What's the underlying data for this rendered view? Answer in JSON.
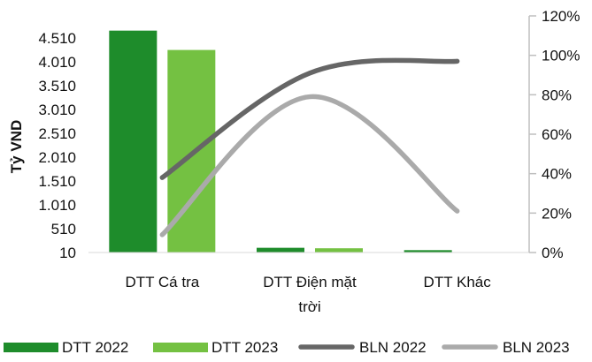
{
  "chart_data": {
    "type": "bar",
    "categories": [
      [
        "DTT Cá tra"
      ],
      [
        "DTT Điện mặt",
        "trời"
      ],
      [
        "DTT Khác"
      ]
    ],
    "ylabel": "Tỷ VND",
    "y_ticks": [
      "4.510",
      "4.010",
      "3.510",
      "3.010",
      "2.510",
      "2.010",
      "1.510",
      "1.010",
      "510",
      "10"
    ],
    "ylim": [
      10,
      4760
    ],
    "y2_ticks": [
      "120%",
      "100%",
      "80%",
      "60%",
      "40%",
      "20%",
      "0%"
    ],
    "y2lim": [
      0,
      120
    ],
    "bar_series": [
      {
        "name": "DTT 2022",
        "color": "#1e8c2b",
        "values": [
          4710,
          110,
          60
        ]
      },
      {
        "name": "DTT 2023",
        "color": "#74c142",
        "values": [
          4300,
          100,
          0
        ]
      }
    ],
    "line_series": [
      {
        "name": "BLN 2022",
        "color": "#666666",
        "axis": "right",
        "values": [
          38,
          91,
          97
        ]
      },
      {
        "name": "BLN 2023",
        "color": "#aaaaaa",
        "axis": "right",
        "values": [
          9,
          79,
          21
        ]
      }
    ],
    "legend_position": "bottom",
    "grid": false
  }
}
